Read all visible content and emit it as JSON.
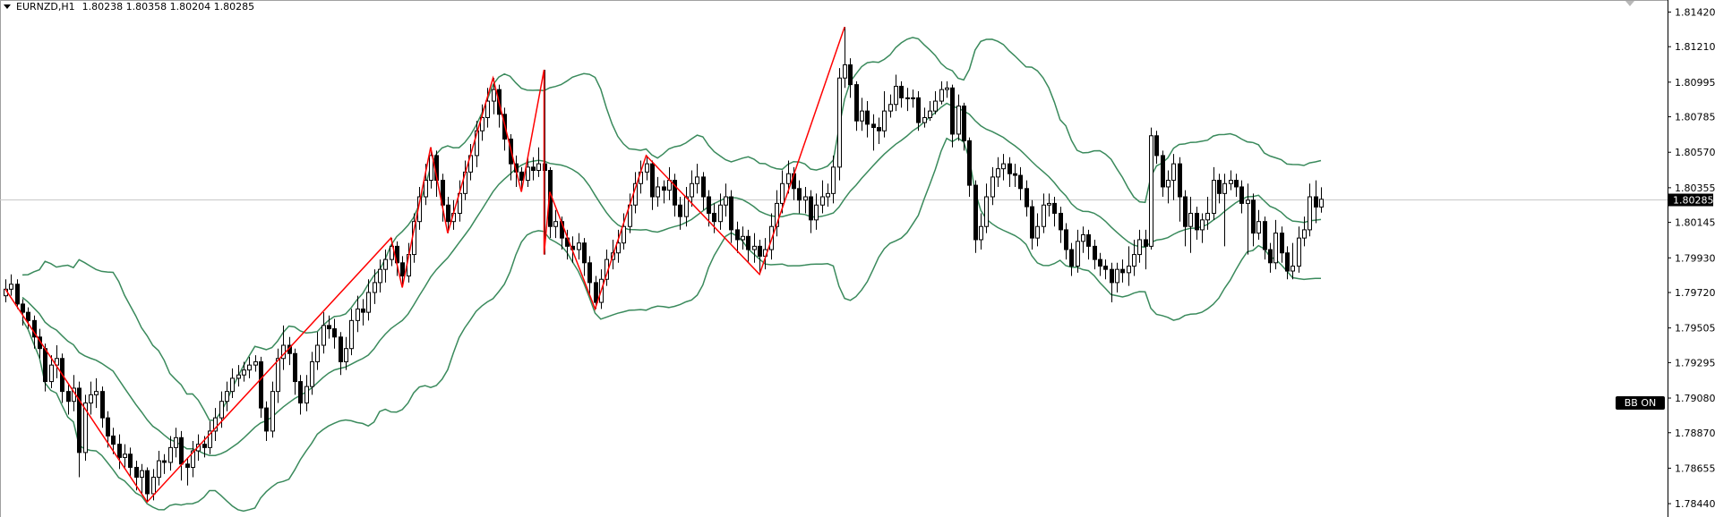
{
  "header": {
    "symbol": "EURNZD,H1",
    "ohlc": "1.80238 1.80358 1.80204 1.80285",
    "menu_icon": "triangle-down-icon"
  },
  "badge": {
    "label": "BB ON"
  },
  "colors": {
    "bull_body": "#ffffff",
    "bear_body": "#000000",
    "candle_outline": "#000000",
    "bands": "#3a8a5c",
    "zigzag": "#ff0000",
    "bid_line": "#c8c8c8",
    "price_label_bg": "#000000"
  },
  "chart_data": {
    "type": "candlestick",
    "title": "EURNZD,H1",
    "ylim": [
      1.78359,
      1.81493
    ],
    "grid": false,
    "current_price": 1.80285,
    "current_price_label": "1.80285",
    "y_ticks": [
      "1.81420",
      "1.81210",
      "1.80995",
      "1.80785",
      "1.80570",
      "1.80355",
      "1.80145",
      "1.79930",
      "1.79720",
      "1.79505",
      "1.79295",
      "1.79080",
      "1.78870",
      "1.78655",
      "1.78440"
    ],
    "indicators": {
      "bollinger": {
        "period": 20,
        "deviation": 2
      },
      "zigzag": {
        "points": [
          [
            0,
            1.7974
          ],
          [
            25,
            1.7845
          ],
          [
            68,
            1.8005
          ],
          [
            70,
            1.7975
          ],
          [
            75,
            1.806
          ],
          [
            78,
            1.8008
          ],
          [
            86,
            1.8102
          ],
          [
            91,
            1.8033
          ],
          [
            95,
            1.8107
          ],
          [
            95,
            1.7995
          ],
          [
            96,
            1.8033
          ],
          [
            104,
            1.7962
          ],
          [
            113,
            1.8055
          ],
          [
            133,
            1.7983
          ],
          [
            148,
            1.8133
          ]
        ]
      }
    },
    "close": [
      1.7974,
      1.7977,
      1.7965,
      1.796,
      1.7955,
      1.7945,
      1.7938,
      1.7918,
      1.7928,
      1.7932,
      1.7912,
      1.7906,
      1.7914,
      1.7875,
      1.7905,
      1.791,
      1.7912,
      1.7896,
      1.7885,
      1.788,
      1.7872,
      1.7874,
      1.7866,
      1.786,
      1.7864,
      1.785,
      1.786,
      1.787,
      1.7869,
      1.7878,
      1.7884,
      1.7868,
      1.7866,
      1.7876,
      1.788,
      1.7878,
      1.7888,
      1.7896,
      1.7906,
      1.7912,
      1.792,
      1.7922,
      1.7925,
      1.7928,
      1.793,
      1.7902,
      1.7888,
      1.7912,
      1.7932,
      1.794,
      1.7935,
      1.7918,
      1.7905,
      1.7915,
      1.793,
      1.794,
      1.7952,
      1.795,
      1.7945,
      1.793,
      1.7938,
      1.7955,
      1.7962,
      1.796,
      1.7972,
      1.7978,
      1.7986,
      1.7992,
      1.8,
      1.799,
      1.7982,
      1.7995,
      1.8015,
      1.803,
      1.804,
      1.8055,
      1.804,
      1.8025,
      1.8015,
      1.802,
      1.8032,
      1.8045,
      1.8055,
      1.807,
      1.8078,
      1.8088,
      1.8095,
      1.808,
      1.8065,
      1.805,
      1.8045,
      1.804,
      1.8048,
      1.8046,
      1.805,
      1.8046,
      1.8012,
      1.8015,
      1.8005,
      1.8,
      1.7998,
      1.8002,
      1.799,
      1.7978,
      1.7966,
      1.798,
      1.7992,
      1.7996,
      1.8002,
      1.8012,
      1.8025,
      1.8038,
      1.8045,
      1.805,
      1.803,
      1.8036,
      1.8034,
      1.804,
      1.8025,
      1.8018,
      1.803,
      1.8038,
      1.8042,
      1.803,
      1.802,
      1.8015,
      1.8025,
      1.803,
      1.801,
      1.8004,
      1.8006,
      1.7998,
      1.8,
      1.7994,
      1.7998,
      1.8012,
      1.8026,
      1.8038,
      1.8044,
      1.8035,
      1.8028,
      1.803,
      1.8016,
      1.8025,
      1.803,
      1.8032,
      1.8048,
      1.8102,
      1.811,
      1.8098,
      1.8076,
      1.8082,
      1.8074,
      1.8072,
      1.807,
      1.8082,
      1.8086,
      1.8097,
      1.809,
      1.809,
      1.809,
      1.8075,
      1.8078,
      1.8082,
      1.8088,
      1.8095,
      1.8096,
      1.8068,
      1.8085,
      1.8064,
      1.8037,
      1.8004,
      1.8012,
      1.803,
      1.8042,
      1.8047,
      1.805,
      1.8044,
      1.8043,
      1.8035,
      1.8024,
      1.8005,
      1.8012,
      1.8025,
      1.8026,
      1.802,
      1.801,
      1.7998,
      1.7988,
      1.8003,
      1.8007,
      1.8,
      1.7992,
      1.7988,
      1.7986,
      1.7978,
      1.7986,
      1.7984,
      1.7988,
      1.7995,
      1.8004,
      1.8,
      1.8067,
      1.8055,
      1.8036,
      1.804,
      1.805,
      1.803,
      1.8012,
      1.802,
      1.801,
      1.8016,
      1.802,
      1.804,
      1.8032,
      1.8038,
      1.804,
      1.8036,
      1.8026,
      1.8028,
      1.8008,
      1.8015,
      1.7998,
      1.799,
      1.8008,
      1.7996,
      1.7985,
      1.7988,
      1.8005,
      1.801,
      1.803,
      1.80238,
      1.80285
    ],
    "open": [
      1.797,
      1.7974,
      1.7977,
      1.7965,
      1.796,
      1.7955,
      1.7945,
      1.7938,
      1.7918,
      1.7928,
      1.7932,
      1.7912,
      1.7906,
      1.7914,
      1.7875,
      1.7905,
      1.791,
      1.7912,
      1.7896,
      1.7885,
      1.788,
      1.7872,
      1.7874,
      1.7866,
      1.786,
      1.7864,
      1.785,
      1.786,
      1.787,
      1.7869,
      1.7878,
      1.7884,
      1.7868,
      1.7866,
      1.7876,
      1.788,
      1.7878,
      1.7888,
      1.7896,
      1.7906,
      1.7912,
      1.792,
      1.7922,
      1.7925,
      1.7928,
      1.793,
      1.7902,
      1.7888,
      1.7912,
      1.7932,
      1.794,
      1.7935,
      1.7918,
      1.7905,
      1.7915,
      1.793,
      1.794,
      1.7952,
      1.795,
      1.7945,
      1.793,
      1.7938,
      1.7955,
      1.7962,
      1.796,
      1.7972,
      1.7978,
      1.7986,
      1.7992,
      1.8,
      1.799,
      1.7982,
      1.7995,
      1.8015,
      1.803,
      1.804,
      1.8055,
      1.804,
      1.8025,
      1.8015,
      1.802,
      1.8032,
      1.8045,
      1.8055,
      1.807,
      1.8078,
      1.8088,
      1.8095,
      1.808,
      1.8065,
      1.805,
      1.8045,
      1.804,
      1.8048,
      1.8046,
      1.805,
      1.8046,
      1.8012,
      1.8015,
      1.8005,
      1.8,
      1.7998,
      1.8002,
      1.799,
      1.7978,
      1.7966,
      1.798,
      1.7992,
      1.7996,
      1.8002,
      1.8012,
      1.8025,
      1.8038,
      1.8045,
      1.805,
      1.803,
      1.8036,
      1.8034,
      1.804,
      1.8025,
      1.8018,
      1.803,
      1.8038,
      1.8042,
      1.803,
      1.802,
      1.8015,
      1.8025,
      1.803,
      1.801,
      1.8004,
      1.8006,
      1.7998,
      1.8,
      1.7994,
      1.7998,
      1.8012,
      1.8026,
      1.8038,
      1.8044,
      1.8035,
      1.8028,
      1.803,
      1.8016,
      1.8025,
      1.803,
      1.8032,
      1.8048,
      1.8102,
      1.811,
      1.8098,
      1.8076,
      1.8082,
      1.8074,
      1.8072,
      1.807,
      1.8082,
      1.8086,
      1.8097,
      1.809,
      1.809,
      1.809,
      1.8075,
      1.8078,
      1.8082,
      1.8088,
      1.8095,
      1.8096,
      1.8068,
      1.8085,
      1.8064,
      1.8037,
      1.8004,
      1.8012,
      1.803,
      1.8042,
      1.8047,
      1.805,
      1.8044,
      1.8043,
      1.8035,
      1.8024,
      1.8005,
      1.8012,
      1.8025,
      1.8026,
      1.802,
      1.801,
      1.7998,
      1.7988,
      1.8003,
      1.8007,
      1.8,
      1.7992,
      1.7988,
      1.7986,
      1.7978,
      1.7986,
      1.7984,
      1.7988,
      1.7995,
      1.8004,
      1.8,
      1.8067,
      1.8055,
      1.8036,
      1.804,
      1.805,
      1.803,
      1.8012,
      1.802,
      1.801,
      1.8016,
      1.802,
      1.804,
      1.8032,
      1.8038,
      1.804,
      1.8036,
      1.8026,
      1.8028,
      1.8008,
      1.8015,
      1.7998,
      1.799,
      1.8008,
      1.7996,
      1.7985,
      1.7988,
      1.8005,
      1.801,
      1.803,
      1.80238
    ],
    "high": [
      1.798,
      1.7983,
      1.798,
      1.7968,
      1.7963,
      1.7958,
      1.795,
      1.7941,
      1.7934,
      1.794,
      1.7935,
      1.7916,
      1.7922,
      1.7918,
      1.791,
      1.7918,
      1.792,
      1.7915,
      1.79,
      1.789,
      1.7886,
      1.788,
      1.7878,
      1.787,
      1.7868,
      1.7866,
      1.7865,
      1.7876,
      1.7874,
      1.7885,
      1.789,
      1.7888,
      1.7872,
      1.7882,
      1.7886,
      1.7885,
      1.7894,
      1.7902,
      1.7912,
      1.7918,
      1.7926,
      1.7928,
      1.793,
      1.7933,
      1.7934,
      1.7933,
      1.7906,
      1.7918,
      1.7938,
      1.7952,
      1.7945,
      1.7938,
      1.7922,
      1.7922,
      1.7936,
      1.7948,
      1.796,
      1.7958,
      1.7956,
      1.7948,
      1.7945,
      1.7962,
      1.797,
      1.7968,
      1.798,
      1.7986,
      1.7992,
      1.7998,
      1.8005,
      1.8003,
      1.7994,
      1.8002,
      1.802,
      1.8036,
      1.805,
      1.806,
      1.8058,
      1.8044,
      1.803,
      1.8028,
      1.804,
      1.8052,
      1.8062,
      1.8076,
      1.8086,
      1.8096,
      1.8102,
      1.8098,
      1.8084,
      1.8068,
      1.8055,
      1.8048,
      1.8055,
      1.8054,
      1.806,
      1.8107,
      1.8048,
      1.8022,
      1.8018,
      1.801,
      1.8006,
      1.8008,
      1.8005,
      1.7994,
      1.7982,
      1.7986,
      1.7998,
      1.8004,
      1.801,
      1.802,
      1.8032,
      1.8045,
      1.8052,
      1.8055,
      1.8052,
      1.8042,
      1.804,
      1.8048,
      1.8044,
      1.803,
      1.8036,
      1.8046,
      1.805,
      1.8045,
      1.8034,
      1.8026,
      1.8032,
      1.8038,
      1.8034,
      1.8015,
      1.8012,
      1.801,
      1.8008,
      1.8004,
      1.8005,
      1.802,
      1.8034,
      1.8046,
      1.8052,
      1.8048,
      1.804,
      1.8036,
      1.8034,
      1.8032,
      1.804,
      1.8038,
      1.8055,
      1.8108,
      1.8133,
      1.8114,
      1.81,
      1.809,
      1.8088,
      1.808,
      1.8078,
      1.8094,
      1.8092,
      1.8104,
      1.81,
      1.8096,
      1.8095,
      1.8094,
      1.8084,
      1.8088,
      1.8094,
      1.81,
      1.81,
      1.8098,
      1.8092,
      1.8087,
      1.8066,
      1.804,
      1.802,
      1.8038,
      1.8048,
      1.8054,
      1.8056,
      1.8054,
      1.805,
      1.8048,
      1.804,
      1.8028,
      1.802,
      1.8032,
      1.8032,
      1.803,
      1.8024,
      1.8014,
      1.8002,
      1.801,
      1.8012,
      1.801,
      1.8004,
      1.7996,
      1.7992,
      1.799,
      1.799,
      1.7992,
      1.8,
      1.8004,
      1.801,
      1.801,
      1.8072,
      1.807,
      1.8058,
      1.8046,
      1.8056,
      1.8054,
      1.8034,
      1.803,
      1.8024,
      1.802,
      1.803,
      1.8048,
      1.8044,
      1.8044,
      1.8046,
      1.8044,
      1.804,
      1.8038,
      1.8032,
      1.8022,
      1.8018,
      1.8002,
      1.8016,
      1.8012,
      1.8,
      1.8002,
      1.8012,
      1.8018,
      1.8038,
      1.804,
      1.80358
    ],
    "low": [
      1.7966,
      1.797,
      1.7962,
      1.7952,
      1.795,
      1.7938,
      1.7932,
      1.7912,
      1.7914,
      1.792,
      1.7905,
      1.7898,
      1.79,
      1.786,
      1.787,
      1.7898,
      1.7902,
      1.789,
      1.7878,
      1.7874,
      1.7865,
      1.7866,
      1.786,
      1.7852,
      1.785,
      1.7845,
      1.7846,
      1.7855,
      1.7862,
      1.7864,
      1.7872,
      1.7858,
      1.7855,
      1.786,
      1.787,
      1.7872,
      1.7874,
      1.7882,
      1.789,
      1.79,
      1.7908,
      1.7915,
      1.7918,
      1.792,
      1.7924,
      1.7896,
      1.7882,
      1.7884,
      1.7905,
      1.7925,
      1.7928,
      1.791,
      1.7898,
      1.79,
      1.791,
      1.7925,
      1.7935,
      1.7944,
      1.7938,
      1.7922,
      1.7925,
      1.7934,
      1.7948,
      1.7952,
      1.7955,
      1.7965,
      1.7972,
      1.7978,
      1.7988,
      1.7982,
      1.7975,
      1.7978,
      1.799,
      1.801,
      1.8025,
      1.8035,
      1.803,
      1.8015,
      1.8008,
      1.801,
      1.8015,
      1.8028,
      1.804,
      1.8048,
      1.8064,
      1.8072,
      1.808,
      1.8072,
      1.8058,
      1.804,
      1.8036,
      1.8033,
      1.8036,
      1.804,
      1.8042,
      1.7995,
      1.8005,
      1.8005,
      1.7998,
      1.7992,
      1.799,
      1.7992,
      1.7982,
      1.797,
      1.7962,
      1.7962,
      1.7976,
      1.7986,
      1.799,
      1.7998,
      1.8008,
      1.802,
      1.8032,
      1.804,
      1.8022,
      1.8024,
      1.8026,
      1.8028,
      1.8018,
      1.801,
      1.8012,
      1.8024,
      1.8032,
      1.8022,
      1.8012,
      1.8008,
      1.801,
      1.8018,
      1.8002,
      1.7996,
      1.7998,
      1.799,
      1.799,
      1.7983,
      1.7986,
      1.7992,
      1.8006,
      1.802,
      1.8032,
      1.8028,
      1.802,
      1.802,
      1.8008,
      1.801,
      1.802,
      1.8024,
      1.8026,
      1.804,
      1.8096,
      1.809,
      1.807,
      1.807,
      1.8066,
      1.8058,
      1.8062,
      1.8066,
      1.8078,
      1.8082,
      1.8084,
      1.8082,
      1.8084,
      1.807,
      1.8072,
      1.8076,
      1.808,
      1.8086,
      1.809,
      1.806,
      1.8064,
      1.8058,
      1.803,
      1.7996,
      1.7998,
      1.8008,
      1.8025,
      1.8036,
      1.804,
      1.8036,
      1.8036,
      1.8028,
      1.8018,
      1.7998,
      1.8,
      1.8008,
      1.8018,
      1.8012,
      1.8002,
      1.7992,
      1.7982,
      1.7984,
      1.7996,
      1.7992,
      1.7986,
      1.7982,
      1.798,
      1.7966,
      1.7972,
      1.7978,
      1.7976,
      1.7982,
      1.799,
      1.7986,
      1.7998,
      1.805,
      1.803,
      1.8026,
      1.8028,
      1.8015,
      1.8,
      1.7996,
      1.8004,
      1.8002,
      1.801,
      1.8016,
      1.8026,
      1.8,
      1.8034,
      1.803,
      1.802,
      1.7995,
      1.8,
      1.8004,
      1.7992,
      1.7984,
      1.7986,
      1.799,
      1.798,
      1.798,
      1.7984,
      1.8,
      1.8006,
      1.8014,
      1.80204
    ]
  }
}
